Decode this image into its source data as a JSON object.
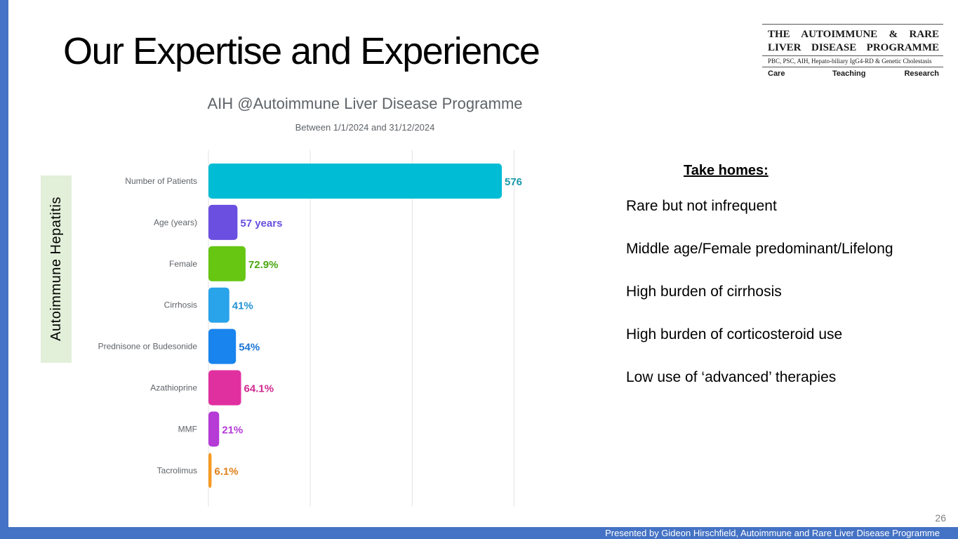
{
  "slide": {
    "title": "Our Expertise and Experience",
    "page_number": "26",
    "footer": "Presented by Gideon Hirschfield, Autoimmune and Rare Liver Disease Programme",
    "vertical_label": "Autoimmune Hepatitis"
  },
  "logo": {
    "line1": "THE AUTOIMMUNE & RARE",
    "line2": "LIVER DISEASE PROGRAMME",
    "subline": "PBC, PSC, AIH, Hepato-biliary IgG4-RD & Genetic Cholestasis",
    "tags": [
      "Care",
      "Teaching",
      "Research"
    ]
  },
  "take_homes": {
    "title": "Take homes:",
    "items": [
      "Rare but not infrequent",
      "Middle age/Female predominant/Lifelong",
      "High burden of cirrhosis",
      "High burden of corticosteroid use",
      "Low use of ‘advanced’ therapies"
    ]
  },
  "chart_data": {
    "type": "bar",
    "orientation": "horizontal",
    "title": "AIH @Autoimmune Liver Disease Programme",
    "subtitle": "Between 1/1/2024 and 31/12/2024",
    "categories": [
      "Number of Patients",
      "Age (years)",
      "Female",
      "Cirrhosis",
      "Prednisone or Budesonide",
      "Azathioprine",
      "MMF",
      "Tacrolimus"
    ],
    "values": [
      576,
      57,
      72.9,
      41,
      54,
      64.1,
      21,
      6.1
    ],
    "value_labels": [
      "576",
      "57 years",
      "72.9%",
      "41%",
      "54%",
      "64.1%",
      "21%",
      "6.1%"
    ],
    "colors": [
      "#00bcd4",
      "#6a4fe0",
      "#66c612",
      "#29a3ea",
      "#1a84ee",
      "#e030a0",
      "#b53ad6",
      "#f59a23"
    ],
    "label_colors": [
      "#1a9aa8",
      "#6a4fe0",
      "#4ba812",
      "#2292d6",
      "#1a74d6",
      "#d0288f",
      "#b53ad6",
      "#e0801a"
    ],
    "xlim": [
      0,
      800
    ],
    "grid": true,
    "legend": "none"
  }
}
